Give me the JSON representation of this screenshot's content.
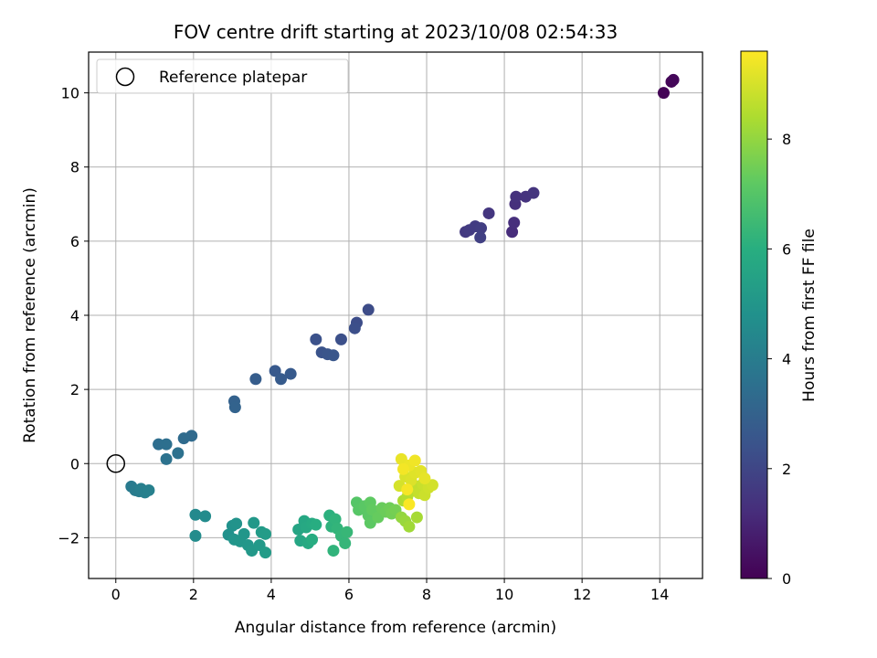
{
  "chart_data": {
    "type": "scatter",
    "title": "FOV centre drift starting at 2023/10/08 02:54:33",
    "xlabel": "Angular distance from reference (arcmin)",
    "ylabel": "Rotation from reference (arcmin)",
    "xlim": [
      -0.7,
      15.1
    ],
    "ylim": [
      -3.1,
      11.1
    ],
    "xticks": [
      0,
      2,
      4,
      6,
      8,
      10,
      12,
      14
    ],
    "yticks": [
      -2,
      0,
      2,
      4,
      6,
      8,
      10
    ],
    "grid": true,
    "legend": {
      "position": "top-left",
      "entries": [
        "Reference platepar"
      ]
    },
    "reference_point": {
      "x": 0,
      "y": 0
    },
    "colorbar": {
      "label": "Hours from first FF file",
      "range": [
        0,
        9.6
      ],
      "ticks": [
        0,
        2,
        4,
        6,
        8
      ],
      "colormap": "viridis"
    },
    "points": [
      {
        "x": 14.1,
        "y": 10.0,
        "t": 0.05
      },
      {
        "x": 14.3,
        "y": 10.3,
        "t": 0.1
      },
      {
        "x": 14.35,
        "y": 10.35,
        "t": 0.15
      },
      {
        "x": 10.2,
        "y": 6.25,
        "t": 1.2
      },
      {
        "x": 10.25,
        "y": 6.5,
        "t": 1.25
      },
      {
        "x": 10.28,
        "y": 7.0,
        "t": 1.3
      },
      {
        "x": 10.3,
        "y": 7.2,
        "t": 1.35
      },
      {
        "x": 10.55,
        "y": 7.2,
        "t": 1.4
      },
      {
        "x": 10.75,
        "y": 7.3,
        "t": 1.45
      },
      {
        "x": 9.6,
        "y": 6.75,
        "t": 1.5
      },
      {
        "x": 9.0,
        "y": 6.25,
        "t": 1.6
      },
      {
        "x": 9.1,
        "y": 6.3,
        "t": 1.65
      },
      {
        "x": 9.25,
        "y": 6.4,
        "t": 1.7
      },
      {
        "x": 9.4,
        "y": 6.35,
        "t": 1.75
      },
      {
        "x": 9.38,
        "y": 6.1,
        "t": 1.8
      },
      {
        "x": 6.5,
        "y": 4.15,
        "t": 2.2
      },
      {
        "x": 6.2,
        "y": 3.8,
        "t": 2.25
      },
      {
        "x": 6.15,
        "y": 3.65,
        "t": 2.3
      },
      {
        "x": 5.8,
        "y": 3.35,
        "t": 2.35
      },
      {
        "x": 5.15,
        "y": 3.35,
        "t": 2.4
      },
      {
        "x": 5.3,
        "y": 3.0,
        "t": 2.45
      },
      {
        "x": 5.45,
        "y": 2.95,
        "t": 2.5
      },
      {
        "x": 5.6,
        "y": 2.92,
        "t": 2.55
      },
      {
        "x": 4.1,
        "y": 2.5,
        "t": 2.65
      },
      {
        "x": 4.5,
        "y": 2.42,
        "t": 2.7
      },
      {
        "x": 4.25,
        "y": 2.28,
        "t": 2.75
      },
      {
        "x": 3.6,
        "y": 2.28,
        "t": 2.8
      },
      {
        "x": 3.05,
        "y": 1.68,
        "t": 3.0
      },
      {
        "x": 3.07,
        "y": 1.52,
        "t": 3.05
      },
      {
        "x": 1.95,
        "y": 0.75,
        "t": 3.3
      },
      {
        "x": 1.75,
        "y": 0.68,
        "t": 3.35
      },
      {
        "x": 1.1,
        "y": 0.52,
        "t": 3.45
      },
      {
        "x": 1.3,
        "y": 0.52,
        "t": 3.5
      },
      {
        "x": 1.6,
        "y": 0.28,
        "t": 3.55
      },
      {
        "x": 1.3,
        "y": 0.12,
        "t": 3.6
      },
      {
        "x": 0.4,
        "y": -0.62,
        "t": 3.9
      },
      {
        "x": 0.5,
        "y": -0.72,
        "t": 3.95
      },
      {
        "x": 0.6,
        "y": -0.75,
        "t": 4.0
      },
      {
        "x": 0.65,
        "y": -0.68,
        "t": 4.05
      },
      {
        "x": 0.75,
        "y": -0.78,
        "t": 4.1
      },
      {
        "x": 0.85,
        "y": -0.72,
        "t": 4.15
      },
      {
        "x": 2.05,
        "y": -1.38,
        "t": 4.5
      },
      {
        "x": 2.3,
        "y": -1.42,
        "t": 4.55
      },
      {
        "x": 2.05,
        "y": -1.95,
        "t": 4.6
      },
      {
        "x": 2.9,
        "y": -1.92,
        "t": 4.8
      },
      {
        "x": 3.0,
        "y": -1.68,
        "t": 4.85
      },
      {
        "x": 3.1,
        "y": -1.62,
        "t": 4.9
      },
      {
        "x": 3.05,
        "y": -2.05,
        "t": 4.95
      },
      {
        "x": 3.2,
        "y": -2.1,
        "t": 5.0
      },
      {
        "x": 3.3,
        "y": -1.9,
        "t": 5.0
      },
      {
        "x": 3.4,
        "y": -2.2,
        "t": 5.05
      },
      {
        "x": 3.5,
        "y": -2.35,
        "t": 5.1
      },
      {
        "x": 3.55,
        "y": -1.6,
        "t": 5.1
      },
      {
        "x": 3.7,
        "y": -2.2,
        "t": 5.15
      },
      {
        "x": 3.75,
        "y": -1.85,
        "t": 5.2
      },
      {
        "x": 3.85,
        "y": -2.4,
        "t": 5.2
      },
      {
        "x": 3.85,
        "y": -1.9,
        "t": 5.25
      },
      {
        "x": 4.7,
        "y": -1.78,
        "t": 5.6
      },
      {
        "x": 4.75,
        "y": -2.08,
        "t": 5.65
      },
      {
        "x": 4.85,
        "y": -1.55,
        "t": 5.7
      },
      {
        "x": 4.9,
        "y": -1.72,
        "t": 5.75
      },
      {
        "x": 4.95,
        "y": -2.15,
        "t": 5.8
      },
      {
        "x": 5.05,
        "y": -1.62,
        "t": 5.85
      },
      {
        "x": 5.05,
        "y": -2.05,
        "t": 5.9
      },
      {
        "x": 5.15,
        "y": -1.65,
        "t": 5.95
      },
      {
        "x": 5.5,
        "y": -1.4,
        "t": 6.1
      },
      {
        "x": 5.55,
        "y": -1.7,
        "t": 6.15
      },
      {
        "x": 5.65,
        "y": -1.5,
        "t": 6.2
      },
      {
        "x": 5.6,
        "y": -2.35,
        "t": 6.2
      },
      {
        "x": 5.7,
        "y": -1.75,
        "t": 6.25
      },
      {
        "x": 5.8,
        "y": -1.95,
        "t": 6.3
      },
      {
        "x": 5.9,
        "y": -2.15,
        "t": 6.3
      },
      {
        "x": 5.95,
        "y": -1.85,
        "t": 6.35
      },
      {
        "x": 6.2,
        "y": -1.05,
        "t": 7.0
      },
      {
        "x": 6.25,
        "y": -1.25,
        "t": 7.05
      },
      {
        "x": 6.4,
        "y": -1.15,
        "t": 7.1
      },
      {
        "x": 6.5,
        "y": -1.4,
        "t": 7.1
      },
      {
        "x": 6.55,
        "y": -1.6,
        "t": 7.15
      },
      {
        "x": 6.55,
        "y": -1.05,
        "t": 7.2
      },
      {
        "x": 6.6,
        "y": -1.25,
        "t": 7.25
      },
      {
        "x": 6.75,
        "y": -1.45,
        "t": 7.3
      },
      {
        "x": 6.85,
        "y": -1.2,
        "t": 7.35
      },
      {
        "x": 6.95,
        "y": -1.3,
        "t": 7.4
      },
      {
        "x": 7.05,
        "y": -1.2,
        "t": 7.45
      },
      {
        "x": 7.1,
        "y": -1.35,
        "t": 7.5
      },
      {
        "x": 7.2,
        "y": -1.25,
        "t": 7.55
      },
      {
        "x": 7.35,
        "y": -1.45,
        "t": 8.0
      },
      {
        "x": 7.45,
        "y": -1.55,
        "t": 8.1
      },
      {
        "x": 7.55,
        "y": -1.7,
        "t": 8.2
      },
      {
        "x": 7.75,
        "y": -1.45,
        "t": 8.3
      },
      {
        "x": 7.4,
        "y": -1.0,
        "t": 8.4
      },
      {
        "x": 7.5,
        "y": -0.9,
        "t": 8.5
      },
      {
        "x": 7.6,
        "y": -0.75,
        "t": 8.6
      },
      {
        "x": 7.7,
        "y": -0.6,
        "t": 8.7
      },
      {
        "x": 7.8,
        "y": -0.8,
        "t": 8.75
      },
      {
        "x": 7.9,
        "y": -0.55,
        "t": 8.8
      },
      {
        "x": 7.95,
        "y": -0.85,
        "t": 8.85
      },
      {
        "x": 8.05,
        "y": -0.65,
        "t": 8.9
      },
      {
        "x": 8.15,
        "y": -0.58,
        "t": 8.95
      },
      {
        "x": 7.3,
        "y": -0.6,
        "t": 9.0
      },
      {
        "x": 7.45,
        "y": -0.35,
        "t": 9.05
      },
      {
        "x": 7.6,
        "y": -0.45,
        "t": 9.1
      },
      {
        "x": 7.7,
        "y": -0.25,
        "t": 9.15
      },
      {
        "x": 7.85,
        "y": -0.2,
        "t": 9.2
      },
      {
        "x": 7.95,
        "y": -0.4,
        "t": 9.25
      },
      {
        "x": 7.35,
        "y": 0.12,
        "t": 9.3
      },
      {
        "x": 7.55,
        "y": -0.05,
        "t": 9.35
      },
      {
        "x": 7.7,
        "y": 0.08,
        "t": 9.4
      },
      {
        "x": 7.4,
        "y": -0.15,
        "t": 9.45
      },
      {
        "x": 7.5,
        "y": -0.7,
        "t": 9.5
      },
      {
        "x": 7.55,
        "y": -1.1,
        "t": 9.55
      }
    ]
  }
}
